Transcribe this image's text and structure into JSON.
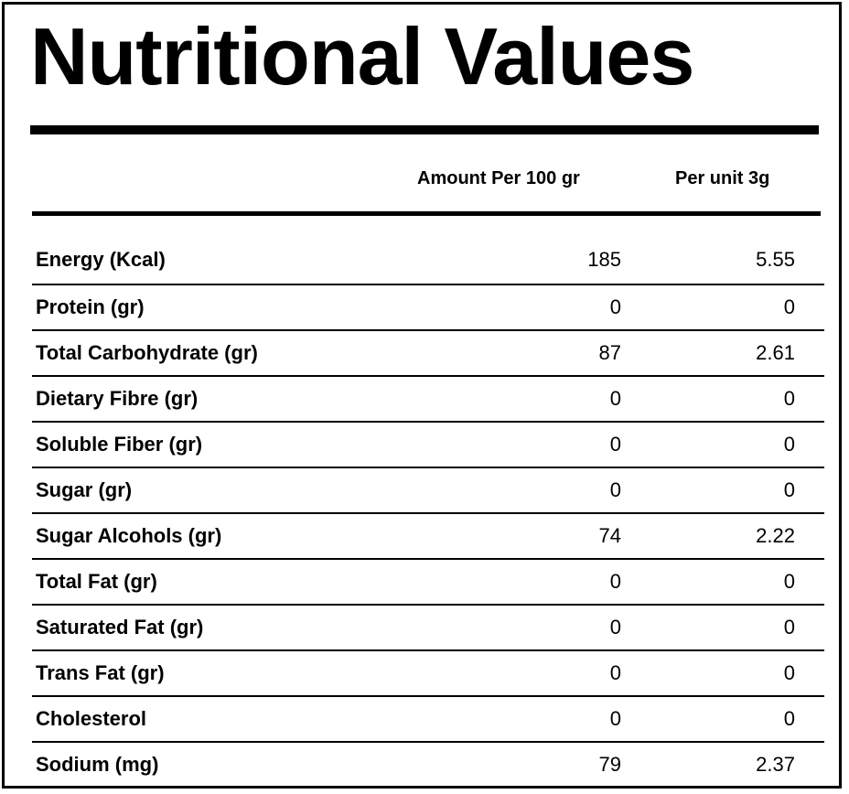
{
  "title": "Nutritional Values",
  "columns": {
    "per_100": "Amount Per 100 gr",
    "per_unit": "Per unit 3g"
  },
  "rows": [
    {
      "label": "Energy (Kcal)",
      "per_100": "185",
      "per_unit": "5.55"
    },
    {
      "label": "Protein (gr)",
      "per_100": "0",
      "per_unit": "0"
    },
    {
      "label": "Total Carbohydrate (gr)",
      "per_100": "87",
      "per_unit": "2.61"
    },
    {
      "label": "Dietary Fibre (gr)",
      "per_100": "0",
      "per_unit": "0"
    },
    {
      "label": "Soluble Fiber (gr)",
      "per_100": "0",
      "per_unit": "0"
    },
    {
      "label": "Sugar (gr)",
      "per_100": "0",
      "per_unit": "0"
    },
    {
      "label": "Sugar Alcohols (gr)",
      "per_100": "74",
      "per_unit": "2.22"
    },
    {
      "label": "Total Fat (gr)",
      "per_100": "0",
      "per_unit": "0"
    },
    {
      "label": "Saturated Fat (gr)",
      "per_100": "0",
      "per_unit": "0"
    },
    {
      "label": "Trans Fat (gr)",
      "per_100": "0",
      "per_unit": "0"
    },
    {
      "label": "Cholesterol",
      "per_100": "0",
      "per_unit": "0"
    },
    {
      "label": "Sodium (mg)",
      "per_100": "79",
      "per_unit": "2.37"
    }
  ]
}
